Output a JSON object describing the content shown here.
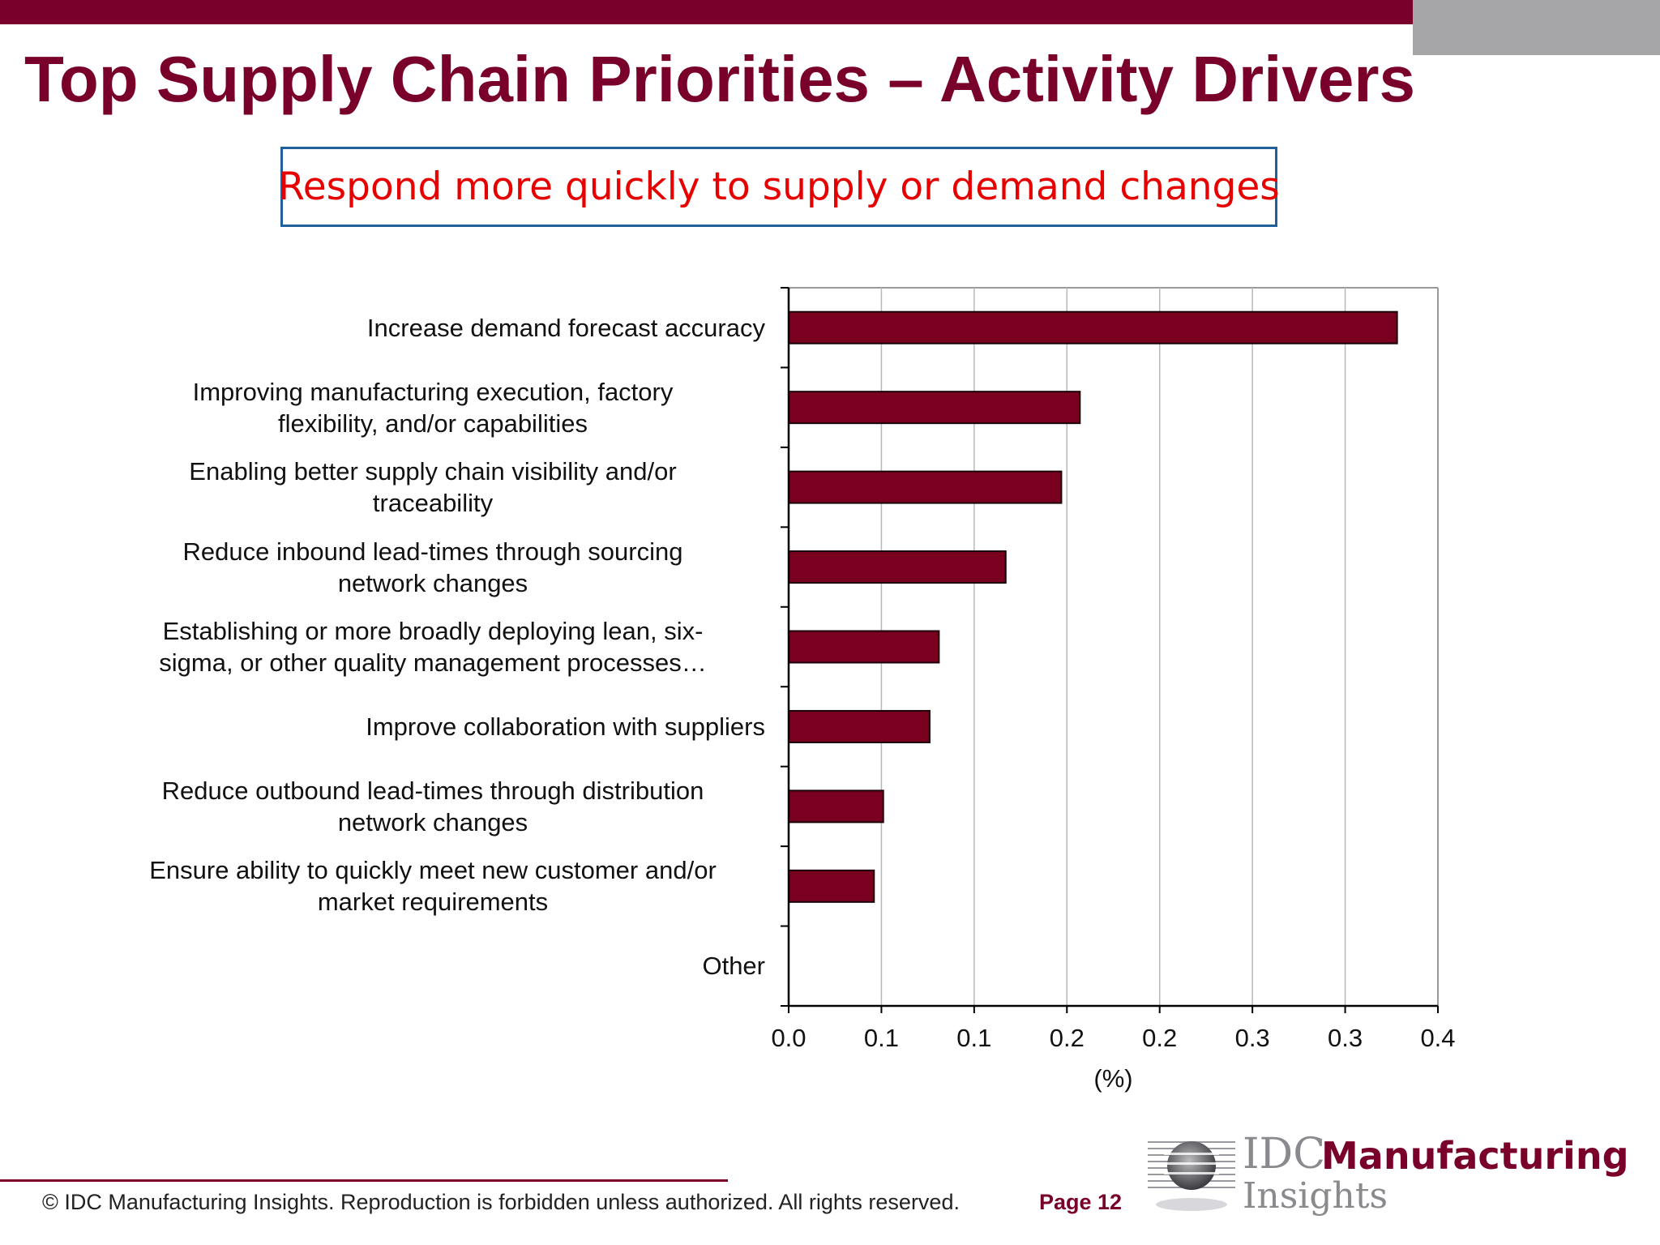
{
  "slide": {
    "title": "Top Supply Chain Priorities – Activity Drivers",
    "subtitle": "Respond more quickly to supply or demand changes"
  },
  "chart_data": {
    "type": "bar",
    "orientation": "horizontal",
    "categories": [
      [
        "Increase demand forecast accuracy"
      ],
      [
        "Improving manufacturing execution,  factory",
        "flexibility, and/or capabilities"
      ],
      [
        "Enabling better supply chain visibility and/or",
        "traceability"
      ],
      [
        "Reduce inbound lead-times through sourcing",
        "network changes"
      ],
      [
        "Establishing or more broadly deploying lean, six-",
        "sigma, or other quality management processes…"
      ],
      [
        "Improve collaboration with suppliers"
      ],
      [
        "Reduce outbound lead-times through distribution",
        "network changes"
      ],
      [
        "Ensure ability to quickly meet  new customer and/or",
        "market requirements"
      ],
      [
        "Other"
      ]
    ],
    "values": [
      0.328,
      0.157,
      0.147,
      0.117,
      0.081,
      0.076,
      0.051,
      0.046,
      0
    ],
    "xlim": [
      0,
      0.35
    ],
    "x_ticks": [
      0,
      0.05,
      0.1,
      0.15,
      0.2,
      0.25,
      0.3,
      0.35
    ],
    "x_tick_labels": [
      "0.0",
      "0.1",
      "0.1",
      "0.2",
      "0.2",
      "0.3",
      "0.3",
      "0.4"
    ],
    "xlabel": "(%)",
    "ylabel": "",
    "grid": "vertical",
    "bar_color": "#7a0020"
  },
  "footer": {
    "copyright": "© IDC Manufacturing Insights. Reproduction is forbidden unless authorized. All rights reserved.",
    "page": "Page 12"
  },
  "logo": {
    "idc": "IDC",
    "manufacturing": "Manufacturing",
    "insights": "Insights"
  },
  "colors": {
    "brand": "#7a002c",
    "subtitle_text": "#e60000",
    "subtitle_border": "#1f5f9a",
    "gray_accent": "#a6a6a8"
  }
}
